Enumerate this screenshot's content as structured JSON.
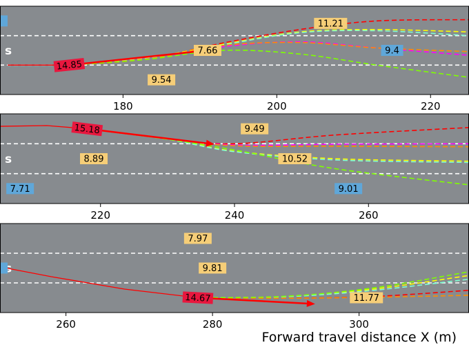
{
  "chart_data": {
    "type": "line",
    "title": "",
    "xlabel": "Forward travel distance X (m)",
    "ylabel": "",
    "colors": {
      "road": "#878b8f",
      "lane_marking": "#ffffff",
      "ego": "#ff0000",
      "cut_vehicle": "#5fa7d9",
      "vehicle": "#f6ce78",
      "ego_box": "#e8173e"
    },
    "panels": [
      {
        "xlim": [
          164,
          225
        ],
        "ylim": [
          -1.8,
          1.8
        ],
        "xticks": [
          180,
          200,
          220
        ],
        "lane_lines": [
          0.6,
          -0.6
        ],
        "lane_label": "s",
        "ego": {
          "x": 173,
          "y": -0.6,
          "label": "14.85"
        },
        "vehicles": [
          {
            "x": 207,
            "y": 1.1,
            "label": "11.21",
            "color": "vehicle"
          },
          {
            "x": 191,
            "y": 0.0,
            "label": "7.66",
            "color": "vehicle"
          },
          {
            "x": 215,
            "y": 0.0,
            "label": "9.4",
            "color": "cut_vehicle"
          },
          {
            "x": 185,
            "y": -1.2,
            "label": "9.54",
            "color": "vehicle"
          },
          {
            "x": 164,
            "y": 1.2,
            "label": "",
            "color": "cut_vehicle"
          }
        ],
        "ego_history": [
          [
            173,
            -0.6
          ],
          [
            165,
            -0.6
          ]
        ],
        "ego_arrow": [
          [
            173,
            -0.6
          ],
          [
            191,
            0.0
          ]
        ],
        "predictions": [
          {
            "color": "#ff0000",
            "points": [
              [
                173,
                -0.6
              ],
              [
                183,
                -0.35
              ],
              [
                193,
                0.3
              ],
              [
                203,
                0.85
              ],
              [
                213,
                1.2
              ],
              [
                225,
                1.25
              ]
            ]
          },
          {
            "color": "#ffff00",
            "points": [
              [
                173,
                -0.6
              ],
              [
                183,
                -0.32
              ],
              [
                193,
                0.25
              ],
              [
                203,
                0.75
              ],
              [
                213,
                0.85
              ],
              [
                225,
                0.75
              ]
            ]
          },
          {
            "color": "#7fffd4",
            "points": [
              [
                173,
                -0.6
              ],
              [
                183,
                -0.34
              ],
              [
                193,
                0.22
              ],
              [
                203,
                0.72
              ],
              [
                213,
                0.8
              ],
              [
                225,
                0.6
              ]
            ]
          },
          {
            "color": "#ff00ff",
            "points": [
              [
                173,
                -0.6
              ],
              [
                183,
                -0.35
              ],
              [
                193,
                0.15
              ],
              [
                203,
                0.35
              ],
              [
                213,
                0.1
              ],
              [
                225,
                -0.2
              ]
            ]
          },
          {
            "color": "#ff8c00",
            "points": [
              [
                173,
                -0.6
              ],
              [
                183,
                -0.36
              ],
              [
                193,
                0.2
              ],
              [
                203,
                0.32
              ],
              [
                213,
                0.1
              ],
              [
                225,
                -0.05
              ]
            ]
          },
          {
            "color": "#7fff00",
            "points": [
              [
                173,
                -0.6
              ],
              [
                183,
                -0.37
              ],
              [
                193,
                0.0
              ],
              [
                203,
                -0.15
              ],
              [
                213,
                -0.6
              ],
              [
                225,
                -1.1
              ]
            ]
          }
        ]
      },
      {
        "xlim": [
          205,
          275
        ],
        "ylim": [
          -1.8,
          1.8
        ],
        "xticks": [
          220,
          240,
          260
        ],
        "lane_lines": [
          0.6,
          -0.6
        ],
        "lane_label": "s",
        "ego": {
          "x": 218,
          "y": 1.2,
          "label": "15.18"
        },
        "vehicles": [
          {
            "x": 243,
            "y": 1.2,
            "label": "9.49",
            "color": "vehicle"
          },
          {
            "x": 219,
            "y": 0.0,
            "label": "8.89",
            "color": "vehicle"
          },
          {
            "x": 249,
            "y": 0.0,
            "label": "10.52",
            "color": "vehicle"
          },
          {
            "x": 208,
            "y": -1.2,
            "label": "7.71",
            "color": "cut_vehicle"
          },
          {
            "x": 257,
            "y": -1.2,
            "label": "9.01",
            "color": "cut_vehicle"
          }
        ],
        "ego_history": [
          [
            205,
            1.3
          ],
          [
            212,
            1.33
          ],
          [
            218,
            1.2
          ]
        ],
        "ego_arrow": [
          [
            218,
            1.2
          ],
          [
            237,
            0.58
          ]
        ],
        "predictions": [
          {
            "color": "#ff0000",
            "points": [
              [
                218,
                1.2
              ],
              [
                230,
                0.8
              ],
              [
                240,
                0.6
              ],
              [
                255,
                0.95
              ],
              [
                275,
                1.25
              ]
            ]
          },
          {
            "color": "#ffff00",
            "points": [
              [
                218,
                1.2
              ],
              [
                230,
                0.8
              ],
              [
                240,
                0.3
              ],
              [
                255,
                0.0
              ],
              [
                275,
                -0.1
              ]
            ]
          },
          {
            "color": "#7fffd4",
            "points": [
              [
                218,
                1.2
              ],
              [
                230,
                0.78
              ],
              [
                240,
                0.28
              ],
              [
                255,
                -0.05
              ],
              [
                275,
                -0.15
              ]
            ]
          },
          {
            "color": "#ff00ff",
            "points": [
              [
                218,
                1.2
              ],
              [
                230,
                0.8
              ],
              [
                240,
                0.55
              ],
              [
                255,
                0.58
              ],
              [
                275,
                0.6
              ]
            ]
          },
          {
            "color": "#ff8c00",
            "points": [
              [
                218,
                1.2
              ],
              [
                230,
                0.8
              ],
              [
                240,
                0.52
              ],
              [
                255,
                0.5
              ],
              [
                275,
                0.48
              ]
            ]
          },
          {
            "color": "#7fff00",
            "points": [
              [
                218,
                1.2
              ],
              [
                230,
                0.78
              ],
              [
                240,
                0.35
              ],
              [
                255,
                -0.4
              ],
              [
                275,
                -1.05
              ]
            ]
          }
        ]
      },
      {
        "xlim": [
          251,
          315
        ],
        "ylim": [
          -1.8,
          1.8
        ],
        "xticks": [
          260,
          280,
          300
        ],
        "lane_lines": [
          0.6,
          -0.6
        ],
        "lane_label": "s",
        "ego": {
          "x": 278,
          "y": -1.2,
          "label": "14.67"
        },
        "vehicles": [
          {
            "x": 278,
            "y": 1.2,
            "label": "7.97",
            "color": "vehicle"
          },
          {
            "x": 280,
            "y": 0.0,
            "label": "9.81",
            "color": "vehicle"
          },
          {
            "x": 301,
            "y": -1.2,
            "label": "11.77",
            "color": "vehicle"
          },
          {
            "x": 251,
            "y": 0.0,
            "label": "",
            "color": "cut_vehicle"
          }
        ],
        "ego_history": [
          [
            251,
            0.05
          ],
          [
            258,
            -0.35
          ],
          [
            268,
            -0.85
          ],
          [
            278,
            -1.2
          ]
        ],
        "ego_arrow": [
          [
            278,
            -1.2
          ],
          [
            294,
            -1.45
          ]
        ],
        "predictions": [
          {
            "color": "#ff0000",
            "points": [
              [
                278,
                -1.2
              ],
              [
                290,
                -1.22
              ],
              [
                302,
                -1.15
              ],
              [
                315,
                -0.9
              ]
            ]
          },
          {
            "color": "#ffff00",
            "points": [
              [
                278,
                -1.2
              ],
              [
                290,
                -1.15
              ],
              [
                302,
                -0.85
              ],
              [
                315,
                -0.3
              ]
            ]
          },
          {
            "color": "#7fffd4",
            "points": [
              [
                278,
                -1.2
              ],
              [
                290,
                -1.16
              ],
              [
                302,
                -0.9
              ],
              [
                315,
                -0.45
              ]
            ]
          },
          {
            "color": "#ff8c00",
            "points": [
              [
                278,
                -1.2
              ],
              [
                290,
                -1.22
              ],
              [
                302,
                -1.18
              ],
              [
                315,
                -1.1
              ]
            ]
          },
          {
            "color": "#7fff00",
            "points": [
              [
                278,
                -1.2
              ],
              [
                290,
                -1.14
              ],
              [
                302,
                -0.8
              ],
              [
                315,
                -0.15
              ]
            ]
          }
        ]
      }
    ]
  }
}
